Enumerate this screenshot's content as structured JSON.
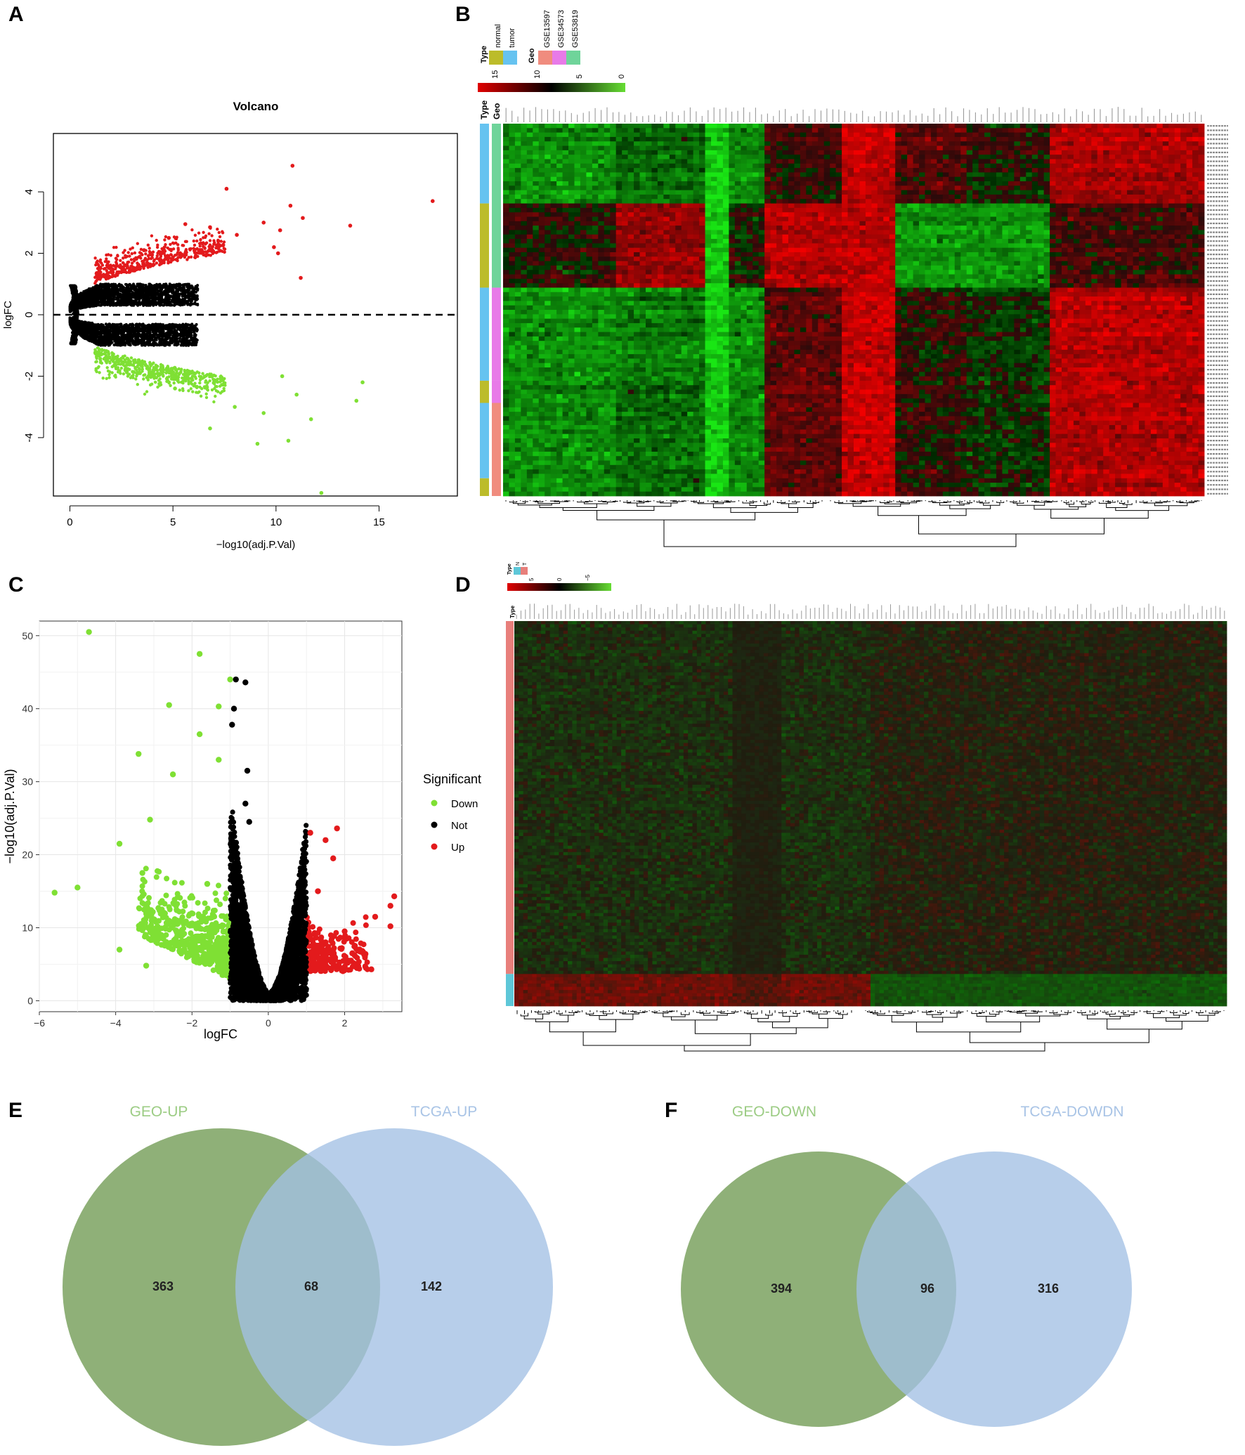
{
  "panels": {
    "a": {
      "letter": "A",
      "chart_data": {
        "type": "scatter",
        "title": "Volcano",
        "xlabel": "−log10(adj.P.Val)",
        "ylabel": "logFC",
        "xlim": [
          -0.8,
          18.8
        ],
        "ylim": [
          -5.9,
          5.9
        ],
        "xticks": [
          0,
          5,
          10,
          15
        ],
        "yticks": [
          -4,
          -2,
          0,
          2,
          4
        ],
        "threshold_logFC": 1,
        "reference_line_y": 0,
        "series": [
          {
            "name": "up",
            "color": "#e31a1c",
            "points": [
              [
                10.8,
                4.85
              ],
              [
                7.6,
                4.1
              ],
              [
                17.6,
                3.7
              ],
              [
                10.7,
                3.55
              ],
              [
                11.3,
                3.15
              ],
              [
                9.4,
                3.0
              ],
              [
                5.6,
                2.95
              ],
              [
                6.8,
                2.85
              ],
              [
                13.6,
                2.9
              ],
              [
                10.2,
                2.75
              ],
              [
                9.9,
                2.2
              ],
              [
                10.1,
                2.0
              ],
              [
                11.2,
                1.2
              ],
              [
                8.1,
                2.6
              ],
              [
                7.2,
                2.4
              ],
              [
                4.8,
                2.5
              ],
              [
                3.6,
                2.1
              ]
            ]
          },
          {
            "name": "down",
            "color": "#7fe034",
            "points": [
              [
                12.2,
                -5.8
              ],
              [
                9.1,
                -4.2
              ],
              [
                10.6,
                -4.1
              ],
              [
                11.7,
                -3.4
              ],
              [
                6.8,
                -3.7
              ],
              [
                13.9,
                -2.8
              ],
              [
                14.2,
                -2.2
              ],
              [
                9.4,
                -3.2
              ],
              [
                8.0,
                -3.0
              ],
              [
                11.0,
                -2.6
              ],
              [
                10.3,
                -2.0
              ],
              [
                5.1,
                -2.4
              ],
              [
                3.4,
                -1.9
              ]
            ]
          },
          {
            "name": "not",
            "color": "#000000",
            "description": "dense arc of non-significant genes"
          }
        ]
      }
    },
    "b": {
      "letter": "B",
      "legend": {
        "type_title": "Type",
        "type_items": [
          {
            "label": "normal",
            "color": "#bcbc2a"
          },
          {
            "label": "tumor",
            "color": "#66c3f0"
          }
        ],
        "geo_title": "Geo",
        "geo_items": [
          {
            "label": "GSE13597",
            "color": "#f08c7e"
          },
          {
            "label": "GSE34573",
            "color": "#e87ae8"
          },
          {
            "label": "GSE53819",
            "color": "#6fd49a"
          }
        ],
        "scale_ticks": [
          "15",
          "10",
          "5",
          "0"
        ]
      },
      "track_labels": [
        "Type",
        "Geo"
      ]
    },
    "c": {
      "letter": "C",
      "chart_data": {
        "type": "scatter",
        "title": "",
        "xlabel": "logFC",
        "ylabel": "−log10(adj.P.Val)",
        "xlim": [
          -6,
          3.5
        ],
        "ylim": [
          -1.5,
          52
        ],
        "xticks": [
          -6,
          -4,
          -2,
          0,
          2
        ],
        "yticks": [
          0,
          10,
          20,
          30,
          40,
          50
        ],
        "grid": true,
        "legend": {
          "title": "Significant",
          "items": [
            {
              "label": "Down",
              "color": "#7fe034"
            },
            {
              "label": "Not",
              "color": "#000000"
            },
            {
              "label": "Up",
              "color": "#e31a1c"
            }
          ]
        },
        "series": [
          {
            "name": "Down",
            "color": "#7fe034",
            "points": [
              [
                -4.7,
                50.5
              ],
              [
                -1.8,
                47.5
              ],
              [
                -1.0,
                44.0
              ],
              [
                -2.6,
                40.5
              ],
              [
                -1.3,
                40.3
              ],
              [
                -1.8,
                36.5
              ],
              [
                -3.4,
                33.8
              ],
              [
                -1.3,
                33.0
              ],
              [
                -2.5,
                31.0
              ],
              [
                -3.1,
                24.8
              ],
              [
                -5.6,
                14.8
              ],
              [
                -5.0,
                15.5
              ],
              [
                -3.9,
                21.5
              ],
              [
                -3.3,
                17.5
              ],
              [
                -3.9,
                7.0
              ],
              [
                -3.2,
                4.8
              ],
              [
                -2.4,
                11.0
              ],
              [
                -1.6,
                16.0
              ]
            ]
          },
          {
            "name": "Not",
            "color": "#000000",
            "points": [
              [
                -0.85,
                44.0
              ],
              [
                -0.6,
                43.6
              ],
              [
                -0.9,
                40.0
              ],
              [
                -0.95,
                37.8
              ],
              [
                -0.55,
                31.5
              ],
              [
                -0.6,
                27.0
              ],
              [
                -0.5,
                24.5
              ]
            ]
          },
          {
            "name": "Up",
            "color": "#e31a1c",
            "points": [
              [
                1.8,
                23.6
              ],
              [
                1.1,
                23.0
              ],
              [
                1.5,
                22.0
              ],
              [
                1.7,
                19.5
              ],
              [
                3.3,
                14.3
              ],
              [
                3.2,
                13.0
              ],
              [
                2.8,
                11.5
              ],
              [
                3.2,
                10.2
              ],
              [
                2.0,
                9.5
              ],
              [
                2.7,
                4.3
              ],
              [
                1.5,
                8.0
              ],
              [
                2.2,
                6.5
              ],
              [
                1.3,
                15.0
              ]
            ]
          }
        ]
      }
    },
    "d": {
      "letter": "D",
      "legend": {
        "type_title": "Type",
        "type_items": [
          {
            "label": "N",
            "color": "#5ec7d8"
          },
          {
            "label": "T",
            "color": "#e87f7b"
          }
        ],
        "scale_ticks": [
          "5",
          "0",
          "−5"
        ]
      },
      "track_label": "Type"
    },
    "e": {
      "letter": "E",
      "left_label": "GEO-UP",
      "right_label": "TCGA-UP",
      "left_only": "363",
      "overlap": "68",
      "right_only": "142"
    },
    "f": {
      "letter": "F",
      "left_label": "GEO-DOWN",
      "right_label": "TCGA-DOWDN",
      "left_only": "394",
      "overlap": "96",
      "right_only": "316"
    }
  },
  "colors": {
    "venn_left": "#6f9a52",
    "venn_right": "#a3c0e4",
    "venn_left_label": "#9ccc84",
    "venn_right_label": "#a9c4e6",
    "heat_high": "#e00000",
    "heat_mid": "#000000",
    "heat_low": "#66dd33"
  }
}
